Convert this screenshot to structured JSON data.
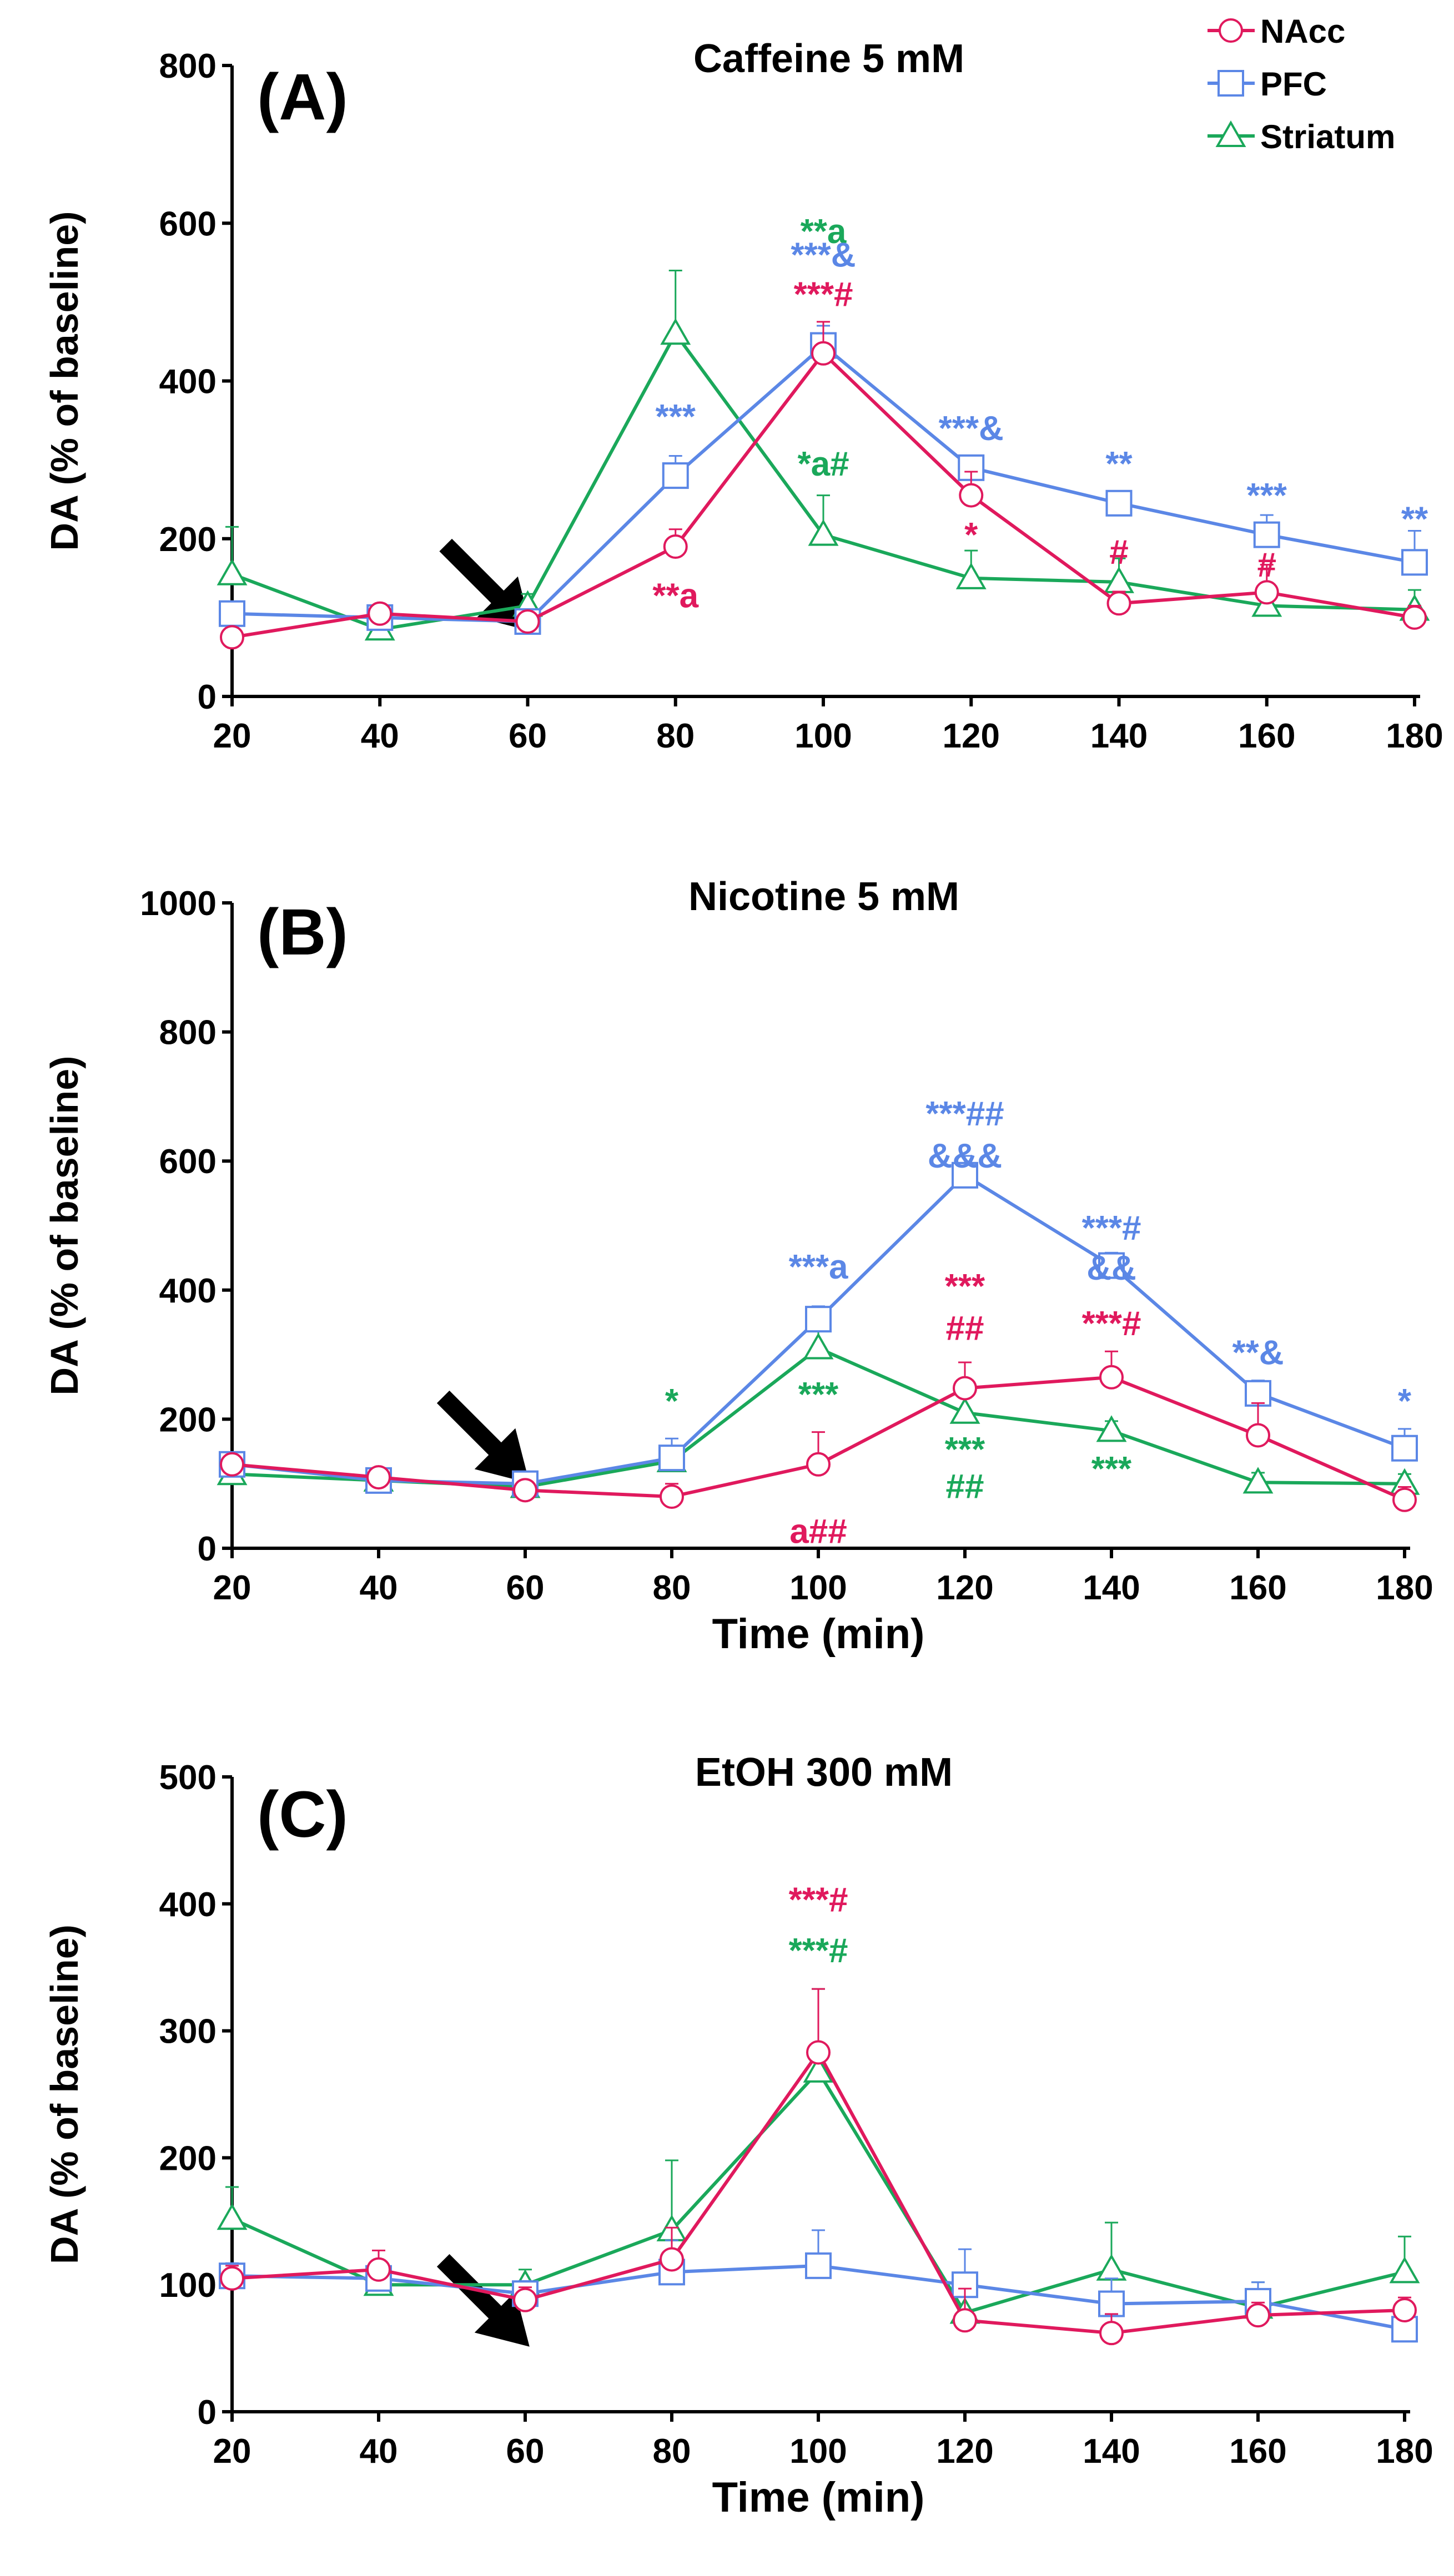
{
  "colors": {
    "nacc": "#e0195d",
    "pfc": "#5b87e6",
    "striatum": "#1aa85a",
    "axis": "#000000"
  },
  "legend": {
    "items": [
      {
        "name": "NAcc",
        "marker": "circle",
        "color": "#e0195d"
      },
      {
        "name": "PFC",
        "marker": "square",
        "color": "#5b87e6"
      },
      {
        "name": "Striatum",
        "marker": "triangle",
        "color": "#1aa85a"
      }
    ]
  },
  "chart_data": [
    {
      "type": "line",
      "panel_label": "(A)",
      "title": "Caffeine 5 mM",
      "ylabel": "DA (% of baseline)",
      "xlabel": "",
      "x": [
        20,
        40,
        60,
        80,
        100,
        120,
        140,
        160,
        180
      ],
      "ylim": [
        0,
        800
      ],
      "yticks": [
        0,
        200,
        400,
        600,
        800
      ],
      "grid": false,
      "legend_position": "top-right",
      "arrow_at_x": 60,
      "series": [
        {
          "name": "NAcc",
          "values": [
            75,
            105,
            95,
            190,
            435,
            255,
            118,
            132,
            100
          ],
          "errors": [
            10,
            10,
            10,
            22,
            40,
            30,
            15,
            35,
            15
          ]
        },
        {
          "name": "PFC",
          "values": [
            105,
            100,
            95,
            280,
            445,
            290,
            245,
            205,
            170
          ],
          "errors": [
            12,
            10,
            8,
            25,
            25,
            15,
            15,
            25,
            40
          ]
        },
        {
          "name": "Striatum",
          "values": [
            155,
            85,
            115,
            460,
            205,
            150,
            145,
            115,
            110
          ],
          "errors": [
            60,
            15,
            15,
            80,
            50,
            35,
            30,
            25,
            25
          ]
        }
      ],
      "annotations": [
        {
          "text": "**a",
          "x": 100,
          "y": 575,
          "series": "Striatum",
          "big_last_char": true
        },
        {
          "text": "***",
          "x": 80,
          "y": 340,
          "series": "PFC"
        },
        {
          "text": "**a",
          "x": 80,
          "y": 113,
          "series": "NAcc",
          "big_last_char": true
        },
        {
          "text": "***&",
          "x": 100,
          "y": 545,
          "series": "PFC",
          "big_last_char": true
        },
        {
          "text": "***#",
          "x": 100,
          "y": 495,
          "series": "NAcc",
          "big_last_char": true
        },
        {
          "text": "*a#",
          "x": 100,
          "y": 280,
          "series": "Striatum",
          "big_last_char": true
        },
        {
          "text": "***&",
          "x": 120,
          "y": 325,
          "series": "PFC",
          "big_last_char": true
        },
        {
          "text": "*",
          "x": 120,
          "y": 190,
          "series": "NAcc"
        },
        {
          "text": "**",
          "x": 140,
          "y": 280,
          "series": "PFC"
        },
        {
          "text": "#",
          "x": 140,
          "y": 168,
          "series": "NAcc"
        },
        {
          "text": "***",
          "x": 160,
          "y": 240,
          "series": "PFC"
        },
        {
          "text": "#",
          "x": 160,
          "y": 152,
          "series": "NAcc"
        },
        {
          "text": "**",
          "x": 180,
          "y": 210,
          "series": "PFC"
        }
      ]
    },
    {
      "type": "line",
      "panel_label": "(B)",
      "title": "Nicotine 5 mM",
      "ylabel": "DA (% of baseline)",
      "xlabel": "Time (min)",
      "x": [
        20,
        40,
        60,
        80,
        100,
        120,
        140,
        160,
        180
      ],
      "ylim": [
        0,
        1000
      ],
      "yticks": [
        0,
        200,
        400,
        600,
        800,
        1000
      ],
      "grid": false,
      "arrow_at_x": 60,
      "series": [
        {
          "name": "NAcc",
          "values": [
            130,
            110,
            90,
            80,
            130,
            248,
            265,
            175,
            75
          ],
          "errors": [
            10,
            10,
            10,
            20,
            50,
            40,
            40,
            50,
            20
          ]
        },
        {
          "name": "PFC",
          "values": [
            130,
            105,
            100,
            140,
            355,
            578,
            438,
            240,
            155
          ],
          "errors": [
            10,
            10,
            10,
            30,
            20,
            30,
            20,
            20,
            30
          ]
        },
        {
          "name": "Striatum",
          "values": [
            115,
            105,
            95,
            135,
            310,
            210,
            182,
            102,
            100
          ],
          "errors": [
            10,
            10,
            10,
            20,
            30,
            25,
            15,
            15,
            15
          ]
        }
      ],
      "annotations": [
        {
          "text": "***##",
          "x": 120,
          "y": 655,
          "series": "PFC",
          "big_last_char": true
        },
        {
          "text": "&&&",
          "x": 120,
          "y": 590,
          "series": "PFC"
        },
        {
          "text": "***#",
          "x": 140,
          "y": 478,
          "series": "PFC",
          "big_last_char": true
        },
        {
          "text": "&&",
          "x": 140,
          "y": 416,
          "series": "PFC"
        },
        {
          "text": "***a",
          "x": 100,
          "y": 418,
          "series": "PFC",
          "big_last_char": true
        },
        {
          "text": "***",
          "x": 120,
          "y": 388,
          "series": "NAcc"
        },
        {
          "text": "##",
          "x": 120,
          "y": 323,
          "series": "NAcc"
        },
        {
          "text": "***#",
          "x": 140,
          "y": 330,
          "series": "NAcc",
          "big_last_char": true
        },
        {
          "text": "**&",
          "x": 160,
          "y": 285,
          "series": "PFC",
          "big_last_char": true
        },
        {
          "text": "*",
          "x": 80,
          "y": 210,
          "series": "Striatum"
        },
        {
          "text": "***",
          "x": 100,
          "y": 220,
          "series": "Striatum"
        },
        {
          "text": "*",
          "x": 180,
          "y": 210,
          "series": "PFC"
        },
        {
          "text": "***",
          "x": 120,
          "y": 135,
          "series": "Striatum"
        },
        {
          "text": "##",
          "x": 120,
          "y": 78,
          "series": "Striatum"
        },
        {
          "text": "***",
          "x": 140,
          "y": 105,
          "series": "Striatum"
        },
        {
          "text": "a##",
          "x": 100,
          "y": 8,
          "series": "NAcc",
          "big_last_char": true
        }
      ]
    },
    {
      "type": "line",
      "panel_label": "(C)",
      "title": "EtOH 300 mM",
      "ylabel": "DA (% of baseline)",
      "xlabel": "Time (min)",
      "x": [
        20,
        40,
        60,
        80,
        100,
        120,
        140,
        160,
        180
      ],
      "ylim": [
        0,
        500
      ],
      "yticks": [
        0,
        100,
        200,
        300,
        400,
        500
      ],
      "grid": false,
      "arrow_at_x": 60,
      "series": [
        {
          "name": "NAcc",
          "values": [
            105,
            112,
            88,
            120,
            283,
            72,
            62,
            76,
            80
          ],
          "errors": [
            10,
            15,
            10,
            25,
            50,
            25,
            15,
            10,
            10
          ]
        },
        {
          "name": "PFC",
          "values": [
            107,
            105,
            93,
            110,
            115,
            100,
            85,
            87,
            65
          ],
          "errors": [
            10,
            10,
            10,
            25,
            28,
            28,
            20,
            15,
            10
          ]
        },
        {
          "name": "Striatum",
          "values": [
            152,
            100,
            100,
            143,
            268,
            78,
            112,
            82,
            110
          ],
          "errors": [
            25,
            10,
            12,
            55,
            65,
            30,
            37,
            20,
            28
          ]
        }
      ],
      "annotations": [
        {
          "text": "***#",
          "x": 100,
          "y": 394,
          "series": "NAcc",
          "big_last_char": true
        },
        {
          "text": "***#",
          "x": 100,
          "y": 354,
          "series": "Striatum",
          "big_last_char": true
        }
      ]
    }
  ]
}
